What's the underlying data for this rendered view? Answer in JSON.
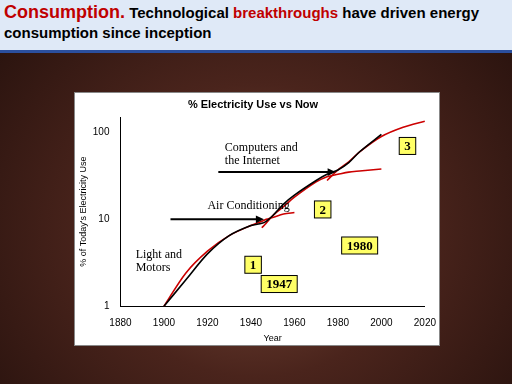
{
  "header": {
    "segments": [
      {
        "text": "Consumption.",
        "color": "#c00000"
      },
      {
        "text": " Technological ",
        "color": "#000000"
      },
      {
        "text": "breakthroughs",
        "color": "#c00000"
      },
      {
        "text": " have driven energy consumption since inception",
        "color": "#000000"
      }
    ]
  },
  "chart_data": {
    "type": "line",
    "title": "% Electricity Use vs Now",
    "x_label": "Year",
    "y_label": "% of Today's Electricity Use",
    "x": [
      1900,
      1910,
      1920,
      1930,
      1940,
      1945,
      1947,
      1950,
      1955,
      1960,
      1970,
      1975,
      1980,
      1985,
      1990,
      2000,
      2010,
      2020
    ],
    "series": [
      {
        "color": "#000000",
        "values": [
          1,
          2,
          4,
          6.5,
          8.5,
          9,
          9.5,
          11,
          15,
          19,
          28,
          33,
          37,
          45,
          60,
          95,
          null,
          null
        ]
      },
      {
        "color": "#cc0000",
        "values": [
          1,
          2.4,
          4.3,
          6.5,
          8.5,
          9.5,
          10,
          10.5,
          11.5,
          12,
          null,
          null,
          null,
          null,
          null,
          null,
          null,
          null
        ]
      },
      {
        "color": "#cc0000",
        "values": [
          null,
          null,
          null,
          null,
          null,
          8,
          9,
          11,
          14,
          18,
          27,
          31,
          33,
          35,
          36,
          38,
          null,
          null
        ]
      },
      {
        "color": "#cc0000",
        "values": [
          null,
          null,
          null,
          null,
          null,
          null,
          null,
          null,
          null,
          null,
          null,
          28,
          37,
          46,
          60,
          90,
          115,
          135
        ]
      }
    ],
    "xlim": [
      1880,
      2020
    ],
    "xticks": [
      1880,
      1900,
      1920,
      1940,
      1960,
      1980,
      2000,
      2020
    ],
    "ylim": [
      1,
      150
    ],
    "yticks": [
      1,
      10,
      100
    ],
    "log": "y",
    "grid": false,
    "marker": "none",
    "line_style": "solid",
    "labels": [
      {
        "text": "Light and\nMotors",
        "x": 1887,
        "y": 3.6
      },
      {
        "text": "Air Conditioning",
        "x": 1920,
        "y": 13
      },
      {
        "text": "Computers and\nthe Internet",
        "x": 1928,
        "y": 62
      }
    ],
    "arrows": [
      {
        "from": [
          1903,
          10
        ],
        "to": [
          1946,
          10
        ]
      },
      {
        "from": [
          1925,
          35
        ],
        "to": [
          1979,
          35
        ]
      }
    ],
    "callouts": [
      {
        "text": "1",
        "x": 1941,
        "y": 3
      },
      {
        "text": "2",
        "x": 1973,
        "y": 13
      },
      {
        "text": "3",
        "x": 2012,
        "y": 70
      },
      {
        "text": "1947",
        "x": 1953,
        "y": 1.8
      },
      {
        "text": "1980",
        "x": 1990,
        "y": 5
      }
    ]
  }
}
